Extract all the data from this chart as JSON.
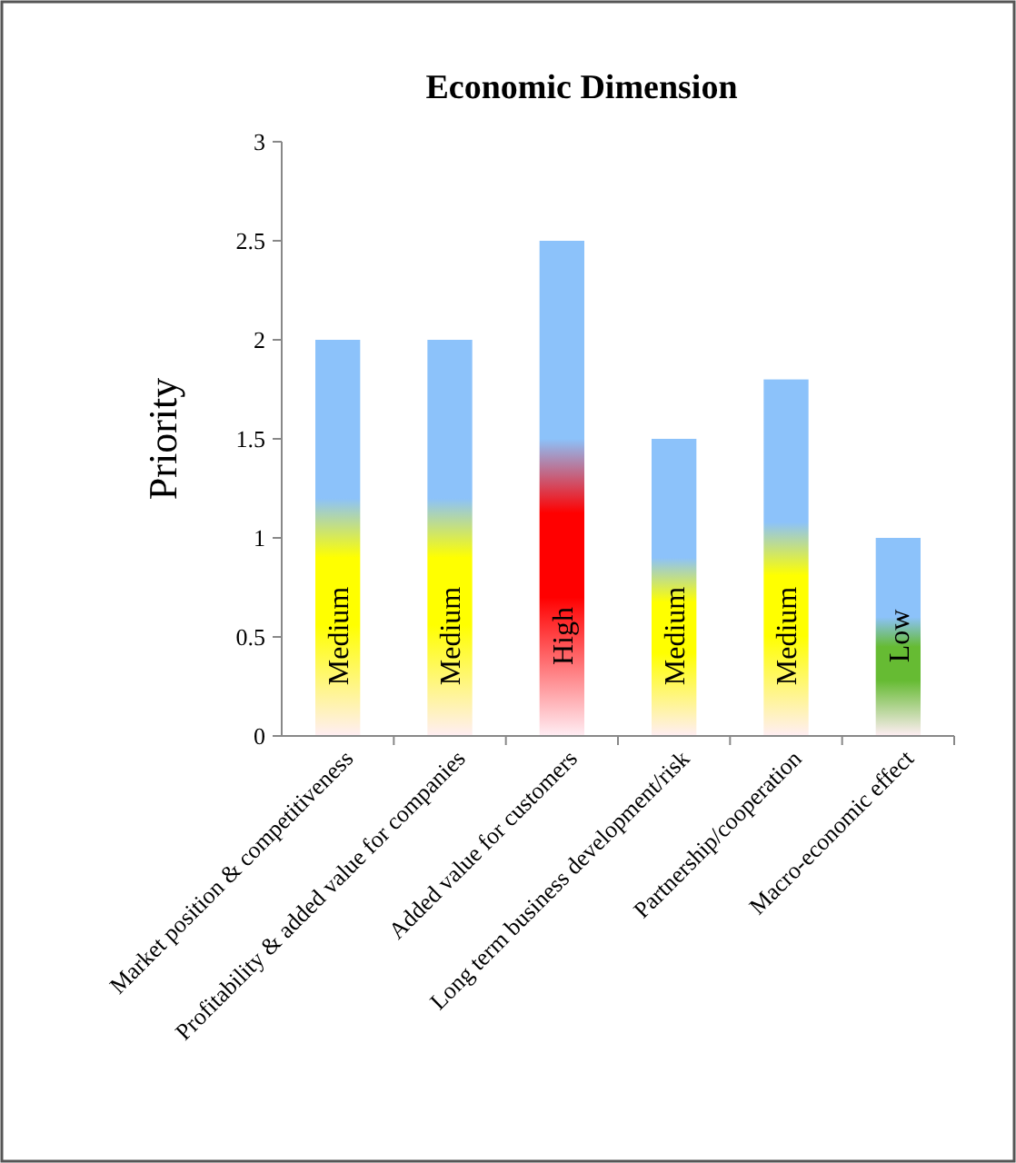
{
  "chart_data": {
    "type": "bar",
    "title": "Economic Dimension",
    "ylabel": "Priority",
    "categories": [
      "Market position & competitiveness",
      "Profitability & added value for companies",
      "Added value for customers",
      "Long term business development/risk",
      "Partnership/cooperation",
      "Macro-economic effect"
    ],
    "series": [
      {
        "color": "#8cc2fa",
        "values": [
          2,
          2,
          2.5,
          1.5,
          1.8,
          1
        ],
        "colors": [
          "#ffff00",
          "#ffff00",
          "#ff0000",
          "#ffff00",
          "#ffff00",
          "#66bb33"
        ],
        "value_labels": [
          "Medium",
          "Medium",
          "High",
          "Medium",
          "Medium",
          "Low"
        ]
      }
    ],
    "ylim": [
      0,
      3
    ],
    "yticks": [
      0,
      0.5,
      1,
      1.5,
      2,
      2.5,
      3
    ],
    "grid": false
  }
}
